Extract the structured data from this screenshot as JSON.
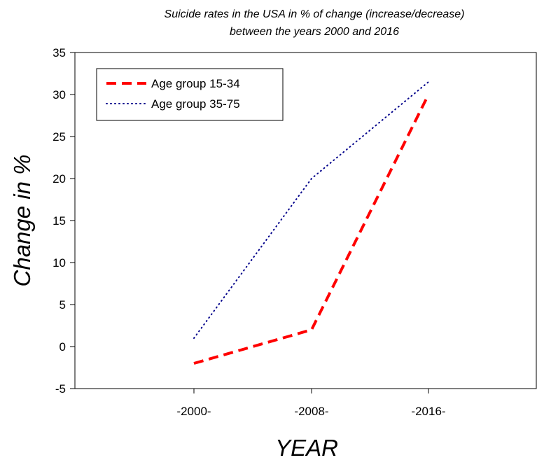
{
  "chart_data": {
    "type": "line",
    "title_lines": [
      "Suicide rates in the USA in % of change (increase/decrease)",
      "between the years 2000 and 2016"
    ],
    "xlabel": "YEAR",
    "ylabel": "Change in %",
    "categories": [
      "-2000-",
      "-2008-",
      "-2016-"
    ],
    "ylim": [
      -5,
      35
    ],
    "yticks": [
      -5,
      0,
      5,
      10,
      15,
      20,
      25,
      30,
      35
    ],
    "grid": false,
    "legend_position": "top-left",
    "series": [
      {
        "name": "Age group 15-34",
        "values": [
          -2,
          2,
          30
        ],
        "color": "#ff0000",
        "style": "dashed"
      },
      {
        "name": "Age group 35-75",
        "values": [
          1,
          20,
          31.5
        ],
        "color": "#00008b",
        "style": "dotted"
      }
    ]
  }
}
